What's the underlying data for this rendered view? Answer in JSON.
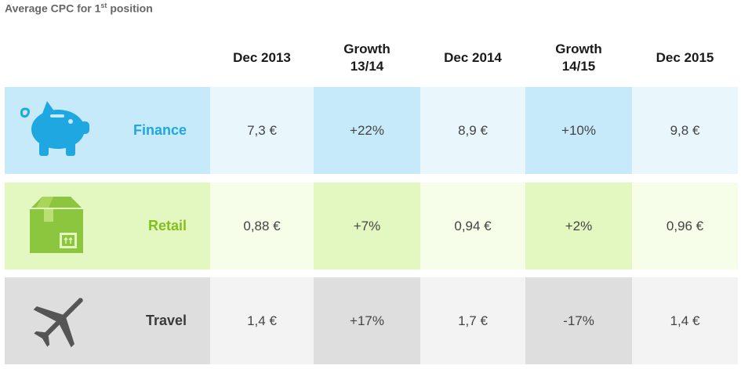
{
  "chart_data": {
    "type": "table",
    "title": "Average CPC for 1",
    "title_sup": "st",
    "title_suffix": " position",
    "columns": [
      "Dec 2013",
      "Growth 13/14",
      "Dec 2014",
      "Growth 14/15",
      "Dec 2015"
    ],
    "column_lines": [
      [
        "Dec 2013"
      ],
      [
        "Growth",
        "13/14"
      ],
      [
        "Dec 2014"
      ],
      [
        "Growth",
        "14/15"
      ],
      [
        "Dec 2015"
      ]
    ],
    "rows": [
      {
        "category": "Finance",
        "icon": "piggy-bank-icon",
        "values": [
          "7,3 €",
          "+22%",
          "8,9 €",
          "+10%",
          "9,8 €"
        ],
        "colors": {
          "label": "#1ea7e1",
          "icon": "#1ea7e1",
          "label_bg": "#c6eafa",
          "value_bg": "#e9f7fd",
          "growth_bg": "#c6eafa"
        }
      },
      {
        "category": "Retail",
        "icon": "package-box-icon",
        "values": [
          "0,88 €",
          "+7%",
          "0,94 €",
          "+2%",
          "0,96 €"
        ],
        "colors": {
          "label": "#85bf1e",
          "icon": "#8cc63f",
          "label_bg": "#e3f7c0",
          "value_bg": "#f6fde8",
          "growth_bg": "#e3f7c0"
        }
      },
      {
        "category": "Travel",
        "icon": "airplane-icon",
        "values": [
          "1,4 €",
          "+17%",
          "1,7 €",
          "-17%",
          "1,4 €"
        ],
        "colors": {
          "label": "#3a3a3a",
          "icon": "#555555",
          "label_bg": "#dedede",
          "value_bg": "#f3f3f3",
          "growth_bg": "#dedede"
        }
      }
    ]
  }
}
